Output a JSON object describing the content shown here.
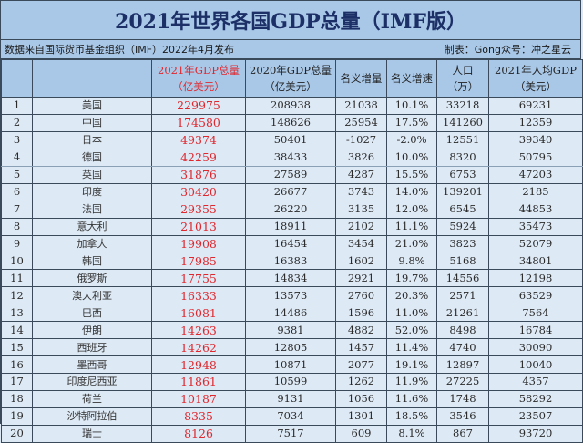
{
  "title": "2021年世界各国GDP总量（IMF版）",
  "subtitle": {
    "source": "数据来自国际货币基金组织（IMF）2022年4月发布",
    "credit": "制表：Gong众号：冲之星云"
  },
  "headers": {
    "rank": "",
    "country": "",
    "gdp2021": "2021年GDP总量",
    "gdp2021_unit": "（亿美元）",
    "gdp2020": "2020年GDP总量",
    "gdp2020_unit": "（亿美元）",
    "nominal_increase": "名义增量",
    "nominal_growth": "名义增速",
    "population": "人口",
    "population_unit": "（万）",
    "per_capita": "2021年人均GDP",
    "per_capita_unit": "（美元）"
  },
  "colors": {
    "header_bg": "#a9c8e8",
    "cell_bg": "#dde9f5",
    "highlight_red": "#e0272d",
    "title": "#1c2f66"
  },
  "rows": [
    {
      "rank": "1",
      "country": "美国",
      "gdp2021": "229975",
      "gdp2020": "208938",
      "increase": "21038",
      "growth": "10.1%",
      "population": "33218",
      "per_capita": "69231"
    },
    {
      "rank": "2",
      "country": "中国",
      "gdp2021": "174580",
      "gdp2020": "148626",
      "increase": "25954",
      "growth": "17.5%",
      "population": "141260",
      "per_capita": "12359"
    },
    {
      "rank": "3",
      "country": "日本",
      "gdp2021": "49374",
      "gdp2020": "50401",
      "increase": "-1027",
      "growth": "-2.0%",
      "population": "12551",
      "per_capita": "39340"
    },
    {
      "rank": "4",
      "country": "德国",
      "gdp2021": "42259",
      "gdp2020": "38433",
      "increase": "3826",
      "growth": "10.0%",
      "population": "8320",
      "per_capita": "50795"
    },
    {
      "rank": "5",
      "country": "英国",
      "gdp2021": "31876",
      "gdp2020": "27589",
      "increase": "4287",
      "growth": "15.5%",
      "population": "6753",
      "per_capita": "47203"
    },
    {
      "rank": "6",
      "country": "印度",
      "gdp2021": "30420",
      "gdp2020": "26677",
      "increase": "3743",
      "growth": "14.0%",
      "population": "139201",
      "per_capita": "2185"
    },
    {
      "rank": "7",
      "country": "法国",
      "gdp2021": "29355",
      "gdp2020": "26220",
      "increase": "3135",
      "growth": "12.0%",
      "population": "6545",
      "per_capita": "44853"
    },
    {
      "rank": "8",
      "country": "意大利",
      "gdp2021": "21013",
      "gdp2020": "18911",
      "increase": "2102",
      "growth": "11.1%",
      "population": "5924",
      "per_capita": "35473"
    },
    {
      "rank": "9",
      "country": "加拿大",
      "gdp2021": "19908",
      "gdp2020": "16454",
      "increase": "3454",
      "growth": "21.0%",
      "population": "3823",
      "per_capita": "52079"
    },
    {
      "rank": "10",
      "country": "韩国",
      "gdp2021": "17985",
      "gdp2020": "16383",
      "increase": "1602",
      "growth": "9.8%",
      "population": "5168",
      "per_capita": "34801"
    },
    {
      "rank": "11",
      "country": "俄罗斯",
      "gdp2021": "17755",
      "gdp2020": "14834",
      "increase": "2921",
      "growth": "19.7%",
      "population": "14556",
      "per_capita": "12198"
    },
    {
      "rank": "12",
      "country": "澳大利亚",
      "gdp2021": "16333",
      "gdp2020": "13573",
      "increase": "2760",
      "growth": "20.3%",
      "population": "2571",
      "per_capita": "63529"
    },
    {
      "rank": "13",
      "country": "巴西",
      "gdp2021": "16081",
      "gdp2020": "14486",
      "increase": "1596",
      "growth": "11.0%",
      "population": "21261",
      "per_capita": "7564"
    },
    {
      "rank": "14",
      "country": "伊朗",
      "gdp2021": "14263",
      "gdp2020": "9381",
      "increase": "4882",
      "growth": "52.0%",
      "population": "8498",
      "per_capita": "16784"
    },
    {
      "rank": "15",
      "country": "西班牙",
      "gdp2021": "14262",
      "gdp2020": "12805",
      "increase": "1457",
      "growth": "11.4%",
      "population": "4740",
      "per_capita": "30090"
    },
    {
      "rank": "16",
      "country": "墨西哥",
      "gdp2021": "12948",
      "gdp2020": "10871",
      "increase": "2077",
      "growth": "19.1%",
      "population": "12897",
      "per_capita": "10040"
    },
    {
      "rank": "17",
      "country": "印度尼西亚",
      "gdp2021": "11861",
      "gdp2020": "10599",
      "increase": "1262",
      "growth": "11.9%",
      "population": "27225",
      "per_capita": "4357"
    },
    {
      "rank": "18",
      "country": "荷兰",
      "gdp2021": "10187",
      "gdp2020": "9131",
      "increase": "1056",
      "growth": "11.6%",
      "population": "1748",
      "per_capita": "58292"
    },
    {
      "rank": "19",
      "country": "沙特阿拉伯",
      "gdp2021": "8335",
      "gdp2020": "7034",
      "increase": "1301",
      "growth": "18.5%",
      "population": "3546",
      "per_capita": "23507"
    },
    {
      "rank": "20",
      "country": "瑞士",
      "gdp2021": "8126",
      "gdp2020": "7517",
      "increase": "609",
      "growth": "8.1%",
      "population": "867",
      "per_capita": "93720"
    }
  ]
}
